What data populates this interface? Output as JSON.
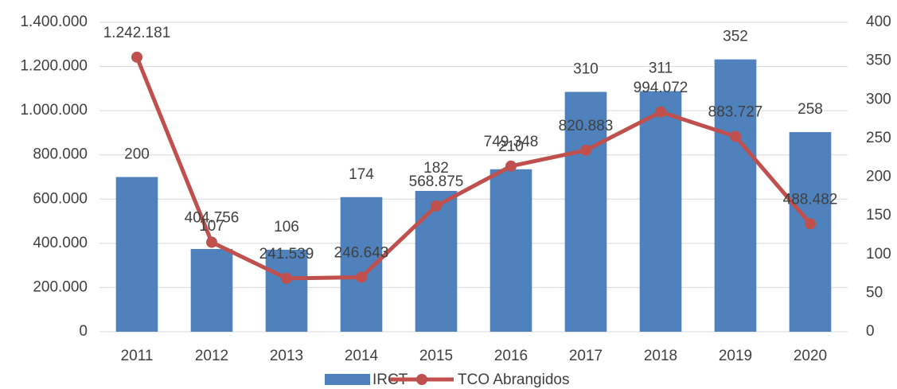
{
  "chart_data": {
    "type": "bar_line",
    "categories": [
      "2011",
      "2012",
      "2013",
      "2014",
      "2015",
      "2016",
      "2017",
      "2018",
      "2019",
      "2020"
    ],
    "series": [
      {
        "name": "IRCT",
        "type": "bar",
        "axis": "y2",
        "color": "#4f81bd",
        "values": [
          200,
          107,
          106,
          174,
          182,
          210,
          310,
          311,
          352,
          258
        ]
      },
      {
        "name": "TCO Abrangidos",
        "type": "line",
        "axis": "y",
        "color": "#c0504d",
        "values": [
          1242181,
          404756,
          241539,
          246643,
          568875,
          749348,
          820883,
          994072,
          883727,
          488482
        ],
        "value_labels": [
          "1.242.181",
          "404.756",
          "241.539",
          "246.643",
          "568.875",
          "749.348",
          "820.883",
          "994.072",
          "883.727",
          "488.482"
        ]
      }
    ],
    "ylim": [
      0,
      1400000
    ],
    "yticks": [
      0,
      {
        "value": 200000,
        "label": "200.000"
      },
      {
        "value": 400000,
        "label": "400.000"
      },
      {
        "value": 600000,
        "label": "600.000"
      },
      {
        "value": 800000,
        "label": "800.000"
      },
      {
        "value": 1000000,
        "label": "1.000.000"
      },
      {
        "value": 1200000,
        "label": "1.200.000"
      },
      {
        "value": 1400000,
        "label": "1.400.000"
      }
    ],
    "y2lim": [
      0,
      400
    ],
    "y2ticks": [
      0,
      50,
      100,
      150,
      200,
      250,
      300,
      350,
      400
    ],
    "grid": true,
    "legend": "bottom"
  }
}
